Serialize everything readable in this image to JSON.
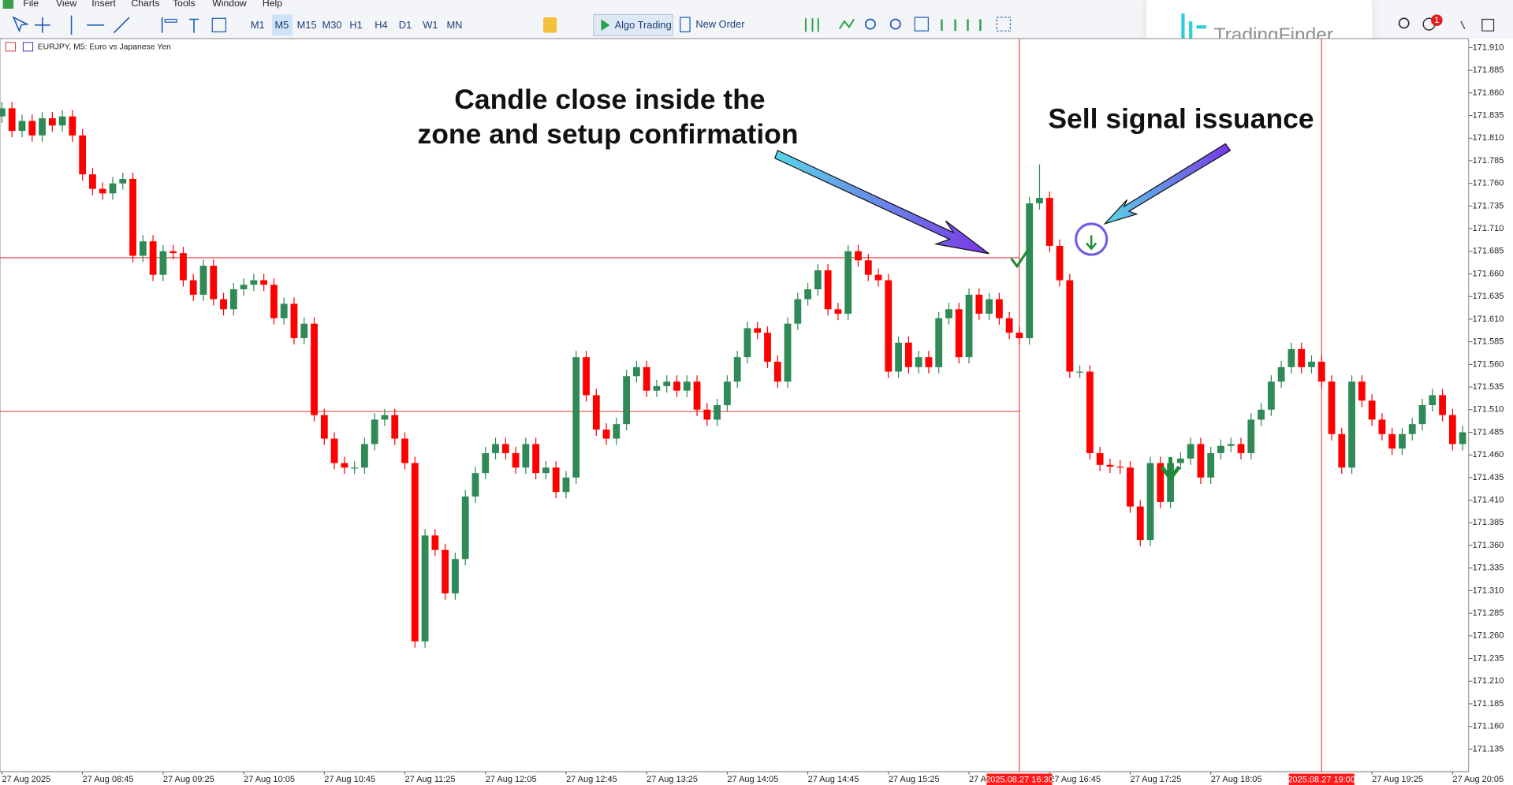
{
  "menu": [
    "File",
    "View",
    "Insert",
    "Charts",
    "Tools",
    "Window",
    "Help"
  ],
  "toolbar": {
    "timeframes": [
      "M1",
      "M5",
      "M15",
      "M30",
      "H1",
      "H4",
      "D1",
      "W1",
      "MN"
    ],
    "algo_trading": "Algo Trading",
    "new_order": "New Order",
    "notification_count": 1
  },
  "logo": "TradingFinder",
  "chart_data": {
    "type": "candlestick",
    "symbol_label": "EURJPY, M5: Euro vs Japanese Yen",
    "annotations": [
      "Candle close inside the",
      "zone and setup confirmation",
      "Sell signal issuance"
    ],
    "up_color": "#2f8a57",
    "down_color": "#ff0000",
    "line_color": "#e34b4b",
    "ylim": [
      171.11,
      171.92
    ],
    "yticks": [
      171.135,
      {
        "value": 171.16,
        "label": "171.160"
      },
      171.185,
      {
        "value": 171.21,
        "label": "171.210"
      },
      171.235,
      {
        "value": 171.26,
        "label": "171.260"
      },
      171.285,
      {
        "value": 171.31,
        "label": "171.310"
      },
      171.335,
      {
        "value": 171.36,
        "label": "171.360"
      },
      171.385,
      {
        "value": 171.41,
        "label": "171.410"
      },
      171.435,
      {
        "value": 171.46,
        "label": "171.460"
      },
      171.485,
      {
        "value": 171.51,
        "label": "171.510"
      },
      171.535,
      {
        "value": 171.56,
        "label": "171.560"
      },
      171.585,
      {
        "value": 171.61,
        "label": "171.610"
      },
      171.635,
      {
        "value": 171.66,
        "label": "171.660"
      },
      171.685,
      {
        "value": 171.71,
        "label": "171.710"
      },
      171.735,
      {
        "value": 171.76,
        "label": "171.760"
      },
      171.785,
      {
        "value": 171.81,
        "label": "171.810"
      },
      171.835,
      {
        "value": 171.86,
        "label": "171.860"
      },
      171.885,
      {
        "value": 171.91,
        "label": "171.910"
      }
    ],
    "hlines": [
      171.678,
      171.508
    ],
    "vlines": [
      {
        "x": 101,
        "label": "2025.08.27 16:30"
      },
      {
        "x": 131,
        "label": "2025.08.27 19:00"
      }
    ],
    "categories": [
      "27 Aug 2025",
      null,
      null,
      null,
      null,
      null,
      null,
      null,
      "27 Aug 08:45",
      null,
      null,
      null,
      null,
      null,
      null,
      null,
      "27 Aug 09:25",
      null,
      null,
      null,
      null,
      null,
      null,
      null,
      "27 Aug 10:05",
      null,
      null,
      null,
      null,
      null,
      null,
      null,
      "27 Aug 10:45",
      null,
      null,
      null,
      null,
      null,
      null,
      null,
      "27 Aug 11:25",
      null,
      null,
      null,
      null,
      null,
      null,
      null,
      "27 Aug 12:05",
      null,
      null,
      null,
      null,
      null,
      null,
      null,
      "27 Aug 12:45",
      null,
      null,
      null,
      null,
      null,
      null,
      null,
      "27 Aug 13:25",
      null,
      null,
      null,
      null,
      null,
      null,
      null,
      "27 Aug 14:05",
      null,
      null,
      null,
      null,
      null,
      null,
      null,
      "27 Aug 14:45",
      null,
      null,
      null,
      null,
      null,
      null,
      null,
      "27 Aug 15:25",
      null,
      null,
      null,
      null,
      null,
      null,
      null,
      "27 A",
      null,
      null,
      null,
      null,
      null,
      null,
      null,
      "27 Aug 16:45",
      null,
      null,
      null,
      null,
      null,
      null,
      null,
      "27 Aug 17:25",
      null,
      null,
      null,
      null,
      null,
      null,
      null,
      "27 Aug 18:05",
      null,
      null,
      null,
      null,
      null,
      null,
      null,
      null,
      null,
      null,
      null,
      null,
      null,
      null,
      null,
      "27 Aug 19:25",
      null,
      null,
      null,
      null,
      null,
      null,
      null,
      "27 Aug 20:05",
      null
    ],
    "open": [
      171.834,
      171.843,
      171.818,
      171.829,
      171.813,
      171.832,
      171.824,
      171.834,
      171.813,
      171.77,
      171.754,
      171.749,
      171.76,
      171.765,
      171.68,
      171.696,
      171.659,
      171.685,
      171.683,
      171.653,
      171.637,
      171.669,
      171.632,
      171.621,
      171.643,
      171.648,
      171.653,
      171.648,
      171.611,
      171.627,
      171.589,
      171.605,
      171.504,
      171.478,
      171.451,
      171.446,
      171.446,
      171.472,
      171.499,
      171.504,
      171.478,
      171.451,
      171.254,
      171.371,
      171.355,
      171.307,
      171.345,
      171.414,
      171.44,
      171.462,
      171.472,
      171.462,
      171.446,
      171.472,
      171.44,
      171.446,
      171.419,
      171.435,
      171.568,
      171.526,
      171.488,
      171.478,
      171.494,
      171.547,
      171.557,
      171.531,
      171.536,
      171.541,
      171.531,
      171.541,
      171.51,
      171.499,
      171.515,
      171.541,
      171.568,
      171.6,
      171.595,
      171.563,
      171.541,
      171.605,
      171.632,
      171.643,
      171.664,
      171.621,
      171.616,
      171.685,
      171.675,
      171.659,
      171.653,
      171.552,
      171.584,
      171.557,
      171.568,
      171.557,
      171.611,
      171.621,
      171.568,
      171.637,
      171.616,
      171.632,
      171.611,
      171.595,
      171.589,
      171.738,
      171.744,
      171.691,
      171.653,
      171.552,
      171.552,
      171.462,
      171.449,
      171.447,
      171.446,
      171.403,
      171.366,
      171.451,
      171.408,
      171.451,
      171.456,
      171.472,
      171.435,
      171.462,
      171.47,
      171.472,
      171.462,
      171.499,
      171.51,
      171.541,
      171.557,
      171.577,
      171.557,
      171.563,
      171.541,
      171.483,
      171.446,
      171.541,
      171.52,
      171.499,
      171.483,
      171.467,
      171.483,
      171.494,
      171.515,
      171.526,
      171.504,
      171.472
    ],
    "high": [
      171.85,
      171.85,
      171.836,
      171.836,
      171.839,
      171.839,
      171.841,
      171.841,
      171.82,
      171.777,
      171.761,
      171.767,
      171.772,
      171.772,
      171.703,
      171.703,
      171.692,
      171.692,
      171.69,
      171.66,
      171.676,
      171.676,
      171.639,
      171.65,
      171.655,
      171.66,
      171.66,
      171.655,
      171.634,
      171.634,
      171.612,
      171.612,
      171.511,
      171.485,
      171.458,
      171.453,
      171.479,
      171.506,
      171.511,
      171.511,
      171.485,
      171.458,
      171.378,
      171.378,
      171.362,
      171.352,
      171.421,
      171.447,
      171.469,
      171.479,
      171.479,
      171.469,
      171.479,
      171.479,
      171.453,
      171.453,
      171.442,
      171.575,
      171.575,
      171.533,
      171.495,
      171.501,
      171.554,
      171.564,
      171.564,
      171.543,
      171.548,
      171.548,
      171.548,
      171.548,
      171.517,
      171.522,
      171.548,
      171.575,
      171.607,
      171.607,
      171.602,
      171.57,
      171.612,
      171.639,
      171.65,
      171.671,
      171.671,
      171.628,
      171.692,
      171.692,
      171.682,
      171.666,
      171.66,
      171.591,
      171.591,
      171.575,
      171.575,
      171.618,
      171.628,
      171.628,
      171.644,
      171.644,
      171.639,
      171.639,
      171.618,
      171.602,
      171.745,
      171.781,
      171.751,
      171.698,
      171.66,
      171.559,
      171.559,
      171.469,
      171.456,
      171.454,
      171.453,
      171.41,
      171.458,
      171.458,
      171.458,
      171.463,
      171.479,
      171.479,
      171.469,
      171.477,
      171.479,
      171.479,
      171.506,
      171.517,
      171.548,
      171.564,
      171.584,
      171.584,
      171.57,
      171.57,
      171.548,
      171.49,
      171.548,
      171.548,
      171.527,
      171.506,
      171.49,
      171.49,
      171.501,
      171.522,
      171.533,
      171.533,
      171.511,
      171.492
    ],
    "low": [
      171.827,
      171.811,
      171.811,
      171.806,
      171.806,
      171.817,
      171.817,
      171.806,
      171.763,
      171.747,
      171.742,
      171.742,
      171.753,
      171.673,
      171.673,
      171.652,
      171.652,
      171.676,
      171.646,
      171.63,
      171.63,
      171.625,
      171.614,
      171.614,
      171.636,
      171.641,
      171.641,
      171.604,
      171.604,
      171.582,
      171.582,
      171.497,
      171.471,
      171.444,
      171.439,
      171.439,
      171.439,
      171.465,
      171.492,
      171.471,
      171.444,
      171.247,
      171.247,
      171.348,
      171.3,
      171.3,
      171.338,
      171.407,
      171.433,
      171.455,
      171.455,
      171.439,
      171.439,
      171.433,
      171.433,
      171.412,
      171.412,
      171.428,
      171.519,
      171.481,
      171.471,
      171.471,
      171.487,
      171.54,
      171.524,
      171.524,
      171.529,
      171.524,
      171.524,
      171.503,
      171.492,
      171.492,
      171.508,
      171.534,
      171.561,
      171.588,
      171.556,
      171.534,
      171.534,
      171.598,
      171.625,
      171.636,
      171.614,
      171.609,
      171.609,
      171.668,
      171.652,
      171.646,
      171.545,
      171.545,
      171.55,
      171.55,
      171.55,
      171.55,
      171.604,
      171.561,
      171.561,
      171.609,
      171.609,
      171.604,
      171.588,
      171.582,
      171.582,
      171.731,
      171.684,
      171.646,
      171.545,
      171.545,
      171.455,
      171.442,
      171.44,
      171.439,
      171.396,
      171.359,
      171.359,
      171.401,
      171.401,
      171.444,
      171.449,
      171.428,
      171.428,
      171.455,
      171.463,
      171.455,
      171.455,
      171.492,
      171.503,
      171.534,
      171.55,
      171.55,
      171.55,
      171.534,
      171.476,
      171.439,
      171.439,
      171.513,
      171.492,
      171.476,
      171.46,
      171.46,
      171.476,
      171.487,
      171.508,
      171.497,
      171.465,
      171.465
    ],
    "close": [
      171.843,
      171.818,
      171.829,
      171.813,
      171.832,
      171.824,
      171.834,
      171.813,
      171.77,
      171.754,
      171.749,
      171.76,
      171.765,
      171.68,
      171.696,
      171.659,
      171.685,
      171.683,
      171.653,
      171.637,
      171.669,
      171.632,
      171.621,
      171.643,
      171.648,
      171.653,
      171.648,
      171.611,
      171.627,
      171.589,
      171.605,
      171.504,
      171.478,
      171.451,
      171.446,
      171.446,
      171.472,
      171.499,
      171.504,
      171.478,
      171.451,
      171.254,
      171.371,
      171.355,
      171.307,
      171.345,
      171.414,
      171.44,
      171.462,
      171.472,
      171.462,
      171.446,
      171.472,
      171.44,
      171.446,
      171.419,
      171.435,
      171.568,
      171.526,
      171.488,
      171.478,
      171.494,
      171.547,
      171.557,
      171.531,
      171.536,
      171.541,
      171.531,
      171.541,
      171.51,
      171.499,
      171.515,
      171.541,
      171.568,
      171.6,
      171.595,
      171.563,
      171.541,
      171.605,
      171.632,
      171.643,
      171.664,
      171.621,
      171.616,
      171.685,
      171.675,
      171.659,
      171.653,
      171.552,
      171.584,
      171.557,
      171.568,
      171.557,
      171.611,
      171.621,
      171.568,
      171.637,
      171.616,
      171.632,
      171.611,
      171.595,
      171.589,
      171.738,
      171.744,
      171.691,
      171.653,
      171.552,
      171.552,
      171.462,
      171.449,
      171.447,
      171.446,
      171.403,
      171.366,
      171.451,
      171.408,
      171.451,
      171.456,
      171.472,
      171.435,
      171.462,
      171.47,
      171.472,
      171.462,
      171.499,
      171.51,
      171.541,
      171.557,
      171.577,
      171.557,
      171.563,
      171.541,
      171.483,
      171.446,
      171.541,
      171.52,
      171.499,
      171.483,
      171.467,
      171.483,
      171.494,
      171.515,
      171.526,
      171.504,
      171.472,
      171.485
    ]
  }
}
